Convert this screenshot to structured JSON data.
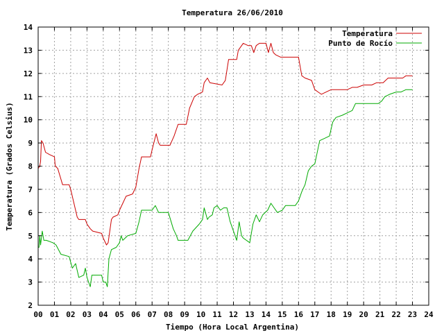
{
  "chart_data": {
    "type": "line",
    "title": "Temperatura 26/06/2010",
    "xlabel": "Tiempo (Hora Local Argentina)",
    "ylabel": "Temperatura (Grados Celsius)",
    "xlim": [
      0,
      24
    ],
    "ylim": [
      2,
      14
    ],
    "xticks": [
      "00",
      "01",
      "02",
      "03",
      "04",
      "05",
      "06",
      "07",
      "08",
      "09",
      "10",
      "11",
      "12",
      "13",
      "14",
      "15",
      "16",
      "17",
      "18",
      "19",
      "20",
      "21",
      "22",
      "23",
      "24"
    ],
    "yticks": [
      2,
      3,
      4,
      5,
      6,
      7,
      8,
      9,
      10,
      11,
      12,
      13,
      14
    ],
    "grid": true,
    "legend_position": "top-right",
    "series": [
      {
        "name": "Temperatura",
        "color": "#cc0000",
        "points": [
          [
            0.0,
            7.9
          ],
          [
            0.1,
            8.0
          ],
          [
            0.15,
            8.2
          ],
          [
            0.2,
            9.1
          ],
          [
            0.3,
            9.0
          ],
          [
            0.45,
            8.6
          ],
          [
            0.7,
            8.5
          ],
          [
            1.0,
            8.4
          ],
          [
            1.05,
            8.0
          ],
          [
            1.2,
            7.9
          ],
          [
            1.5,
            7.2
          ],
          [
            1.9,
            7.2
          ],
          [
            2.0,
            7.0
          ],
          [
            2.2,
            6.4
          ],
          [
            2.4,
            5.8
          ],
          [
            2.5,
            5.7
          ],
          [
            2.9,
            5.7
          ],
          [
            3.0,
            5.5
          ],
          [
            3.2,
            5.3
          ],
          [
            3.35,
            5.2
          ],
          [
            3.9,
            5.1
          ],
          [
            4.0,
            4.9
          ],
          [
            4.2,
            4.6
          ],
          [
            4.3,
            4.7
          ],
          [
            4.5,
            5.7
          ],
          [
            4.6,
            5.8
          ],
          [
            4.9,
            5.9
          ],
          [
            5.0,
            6.1
          ],
          [
            5.2,
            6.4
          ],
          [
            5.4,
            6.7
          ],
          [
            5.8,
            6.8
          ],
          [
            6.0,
            7.1
          ],
          [
            6.2,
            7.9
          ],
          [
            6.35,
            8.4
          ],
          [
            6.9,
            8.4
          ],
          [
            7.0,
            8.7
          ],
          [
            7.25,
            9.4
          ],
          [
            7.4,
            9.0
          ],
          [
            7.5,
            8.9
          ],
          [
            8.1,
            8.9
          ],
          [
            8.35,
            9.3
          ],
          [
            8.6,
            9.8
          ],
          [
            9.1,
            9.8
          ],
          [
            9.3,
            10.5
          ],
          [
            9.6,
            11.0
          ],
          [
            9.8,
            11.1
          ],
          [
            10.1,
            11.2
          ],
          [
            10.2,
            11.6
          ],
          [
            10.4,
            11.8
          ],
          [
            10.55,
            11.6
          ],
          [
            11.3,
            11.5
          ],
          [
            11.5,
            11.7
          ],
          [
            11.7,
            12.6
          ],
          [
            12.2,
            12.6
          ],
          [
            12.3,
            13.0
          ],
          [
            12.6,
            13.3
          ],
          [
            12.9,
            13.2
          ],
          [
            13.1,
            13.2
          ],
          [
            13.25,
            12.9
          ],
          [
            13.4,
            13.2
          ],
          [
            13.6,
            13.3
          ],
          [
            14.0,
            13.3
          ],
          [
            14.15,
            12.9
          ],
          [
            14.3,
            13.3
          ],
          [
            14.45,
            12.9
          ],
          [
            14.6,
            12.8
          ],
          [
            14.9,
            12.7
          ],
          [
            15.3,
            12.7
          ],
          [
            15.8,
            12.7
          ],
          [
            16.0,
            12.7
          ],
          [
            16.2,
            11.9
          ],
          [
            16.4,
            11.8
          ],
          [
            16.8,
            11.7
          ],
          [
            17.0,
            11.3
          ],
          [
            17.2,
            11.2
          ],
          [
            17.4,
            11.1
          ],
          [
            17.7,
            11.2
          ],
          [
            18.0,
            11.3
          ],
          [
            18.5,
            11.3
          ],
          [
            19.0,
            11.3
          ],
          [
            19.3,
            11.4
          ],
          [
            19.6,
            11.4
          ],
          [
            20.0,
            11.5
          ],
          [
            20.5,
            11.5
          ],
          [
            20.8,
            11.6
          ],
          [
            21.2,
            11.6
          ],
          [
            21.5,
            11.8
          ],
          [
            22.0,
            11.8
          ],
          [
            22.4,
            11.8
          ],
          [
            22.6,
            11.9
          ],
          [
            23.0,
            11.9
          ]
        ]
      },
      {
        "name": "Punto de Rocío",
        "color": "#00aa00",
        "points": [
          [
            0.0,
            4.5
          ],
          [
            0.05,
            4.5
          ],
          [
            0.1,
            5.0
          ],
          [
            0.15,
            4.6
          ],
          [
            0.25,
            5.2
          ],
          [
            0.35,
            4.8
          ],
          [
            0.5,
            4.8
          ],
          [
            0.9,
            4.7
          ],
          [
            1.1,
            4.6
          ],
          [
            1.4,
            4.2
          ],
          [
            1.9,
            4.1
          ],
          [
            2.1,
            3.6
          ],
          [
            2.3,
            3.8
          ],
          [
            2.5,
            3.2
          ],
          [
            2.8,
            3.3
          ],
          [
            2.9,
            3.6
          ],
          [
            3.0,
            3.2
          ],
          [
            3.1,
            3.0
          ],
          [
            3.2,
            2.8
          ],
          [
            3.3,
            3.3
          ],
          [
            3.5,
            3.3
          ],
          [
            3.9,
            3.3
          ],
          [
            4.0,
            3.0
          ],
          [
            4.15,
            3.0
          ],
          [
            4.25,
            2.8
          ],
          [
            4.35,
            4.0
          ],
          [
            4.5,
            4.4
          ],
          [
            4.8,
            4.5
          ],
          [
            5.0,
            4.7
          ],
          [
            5.1,
            5.0
          ],
          [
            5.2,
            4.8
          ],
          [
            5.5,
            5.0
          ],
          [
            6.0,
            5.1
          ],
          [
            6.2,
            5.6
          ],
          [
            6.35,
            6.1
          ],
          [
            7.0,
            6.1
          ],
          [
            7.2,
            6.3
          ],
          [
            7.4,
            6.0
          ],
          [
            8.0,
            6.0
          ],
          [
            8.3,
            5.3
          ],
          [
            8.5,
            5.0
          ],
          [
            8.6,
            4.8
          ],
          [
            9.2,
            4.8
          ],
          [
            9.5,
            5.2
          ],
          [
            9.9,
            5.5
          ],
          [
            10.1,
            5.7
          ],
          [
            10.2,
            6.2
          ],
          [
            10.4,
            5.7
          ],
          [
            10.5,
            5.8
          ],
          [
            10.7,
            5.9
          ],
          [
            10.8,
            6.2
          ],
          [
            11.0,
            6.3
          ],
          [
            11.2,
            6.1
          ],
          [
            11.4,
            6.2
          ],
          [
            11.6,
            6.2
          ],
          [
            11.8,
            5.6
          ],
          [
            12.0,
            5.2
          ],
          [
            12.2,
            4.8
          ],
          [
            12.35,
            5.6
          ],
          [
            12.5,
            5.0
          ],
          [
            12.6,
            4.9
          ],
          [
            13.0,
            4.7
          ],
          [
            13.2,
            5.5
          ],
          [
            13.4,
            5.9
          ],
          [
            13.6,
            5.6
          ],
          [
            13.8,
            5.9
          ],
          [
            14.1,
            6.1
          ],
          [
            14.3,
            6.4
          ],
          [
            14.5,
            6.2
          ],
          [
            14.7,
            6.0
          ],
          [
            15.0,
            6.1
          ],
          [
            15.2,
            6.3
          ],
          [
            15.8,
            6.3
          ],
          [
            16.0,
            6.5
          ],
          [
            16.2,
            6.9
          ],
          [
            16.4,
            7.2
          ],
          [
            16.6,
            7.8
          ],
          [
            16.8,
            8.0
          ],
          [
            17.0,
            8.1
          ],
          [
            17.3,
            9.1
          ],
          [
            17.6,
            9.2
          ],
          [
            17.9,
            9.3
          ],
          [
            18.1,
            9.9
          ],
          [
            18.3,
            10.1
          ],
          [
            18.7,
            10.2
          ],
          [
            19.0,
            10.3
          ],
          [
            19.3,
            10.4
          ],
          [
            19.5,
            10.7
          ],
          [
            20.0,
            10.7
          ],
          [
            20.5,
            10.7
          ],
          [
            20.9,
            10.7
          ],
          [
            21.1,
            10.8
          ],
          [
            21.3,
            11.0
          ],
          [
            21.6,
            11.1
          ],
          [
            22.0,
            11.2
          ],
          [
            22.3,
            11.2
          ],
          [
            22.6,
            11.3
          ],
          [
            23.0,
            11.3
          ]
        ]
      }
    ]
  }
}
